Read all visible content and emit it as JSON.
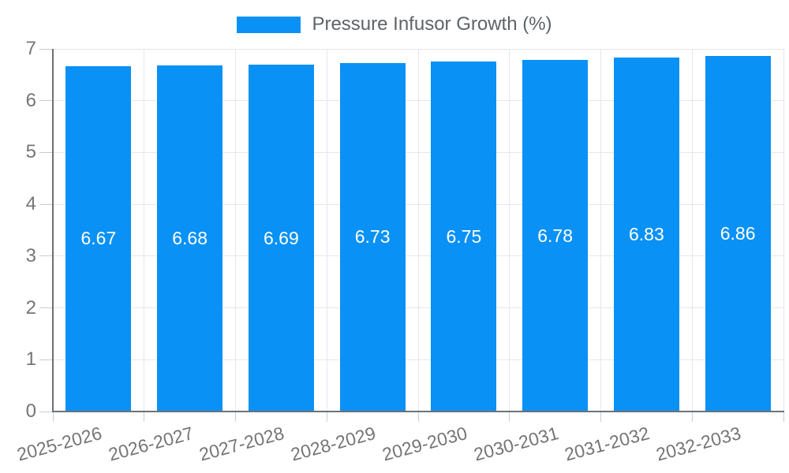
{
  "chart_data": {
    "type": "bar",
    "title": "Pressure Infusor Growth (%)",
    "categories": [
      "2025-2026",
      "2026-2027",
      "2027-2028",
      "2028-2029",
      "2029-2030",
      "2030-2031",
      "2031-2032",
      "2032-2033"
    ],
    "values": [
      6.67,
      6.68,
      6.69,
      6.73,
      6.75,
      6.78,
      6.83,
      6.86
    ],
    "bar_labels": [
      "6.67",
      "6.68",
      "6.69",
      "6.73",
      "6.75",
      "6.78",
      "6.83",
      "6.86"
    ],
    "xlabel": "",
    "ylabel": "",
    "ylim": [
      0,
      7
    ],
    "yticks": [
      0,
      1,
      2,
      3,
      4,
      5,
      6,
      7
    ],
    "grid": true,
    "legend_position": "top",
    "x_label_rotation_deg": -15
  },
  "legend": {
    "label": "Pressure Infusor Growth (%)"
  },
  "colors": {
    "bar": "#0a91f5",
    "bar_label_text": "#ffffff",
    "axis_line": "#6e7079",
    "axis_text": "#757575",
    "grid_line": "#e4e7ed",
    "tick_line": "#c9ccd2",
    "legend_text": "#5f6368",
    "background": "#ffffff"
  }
}
